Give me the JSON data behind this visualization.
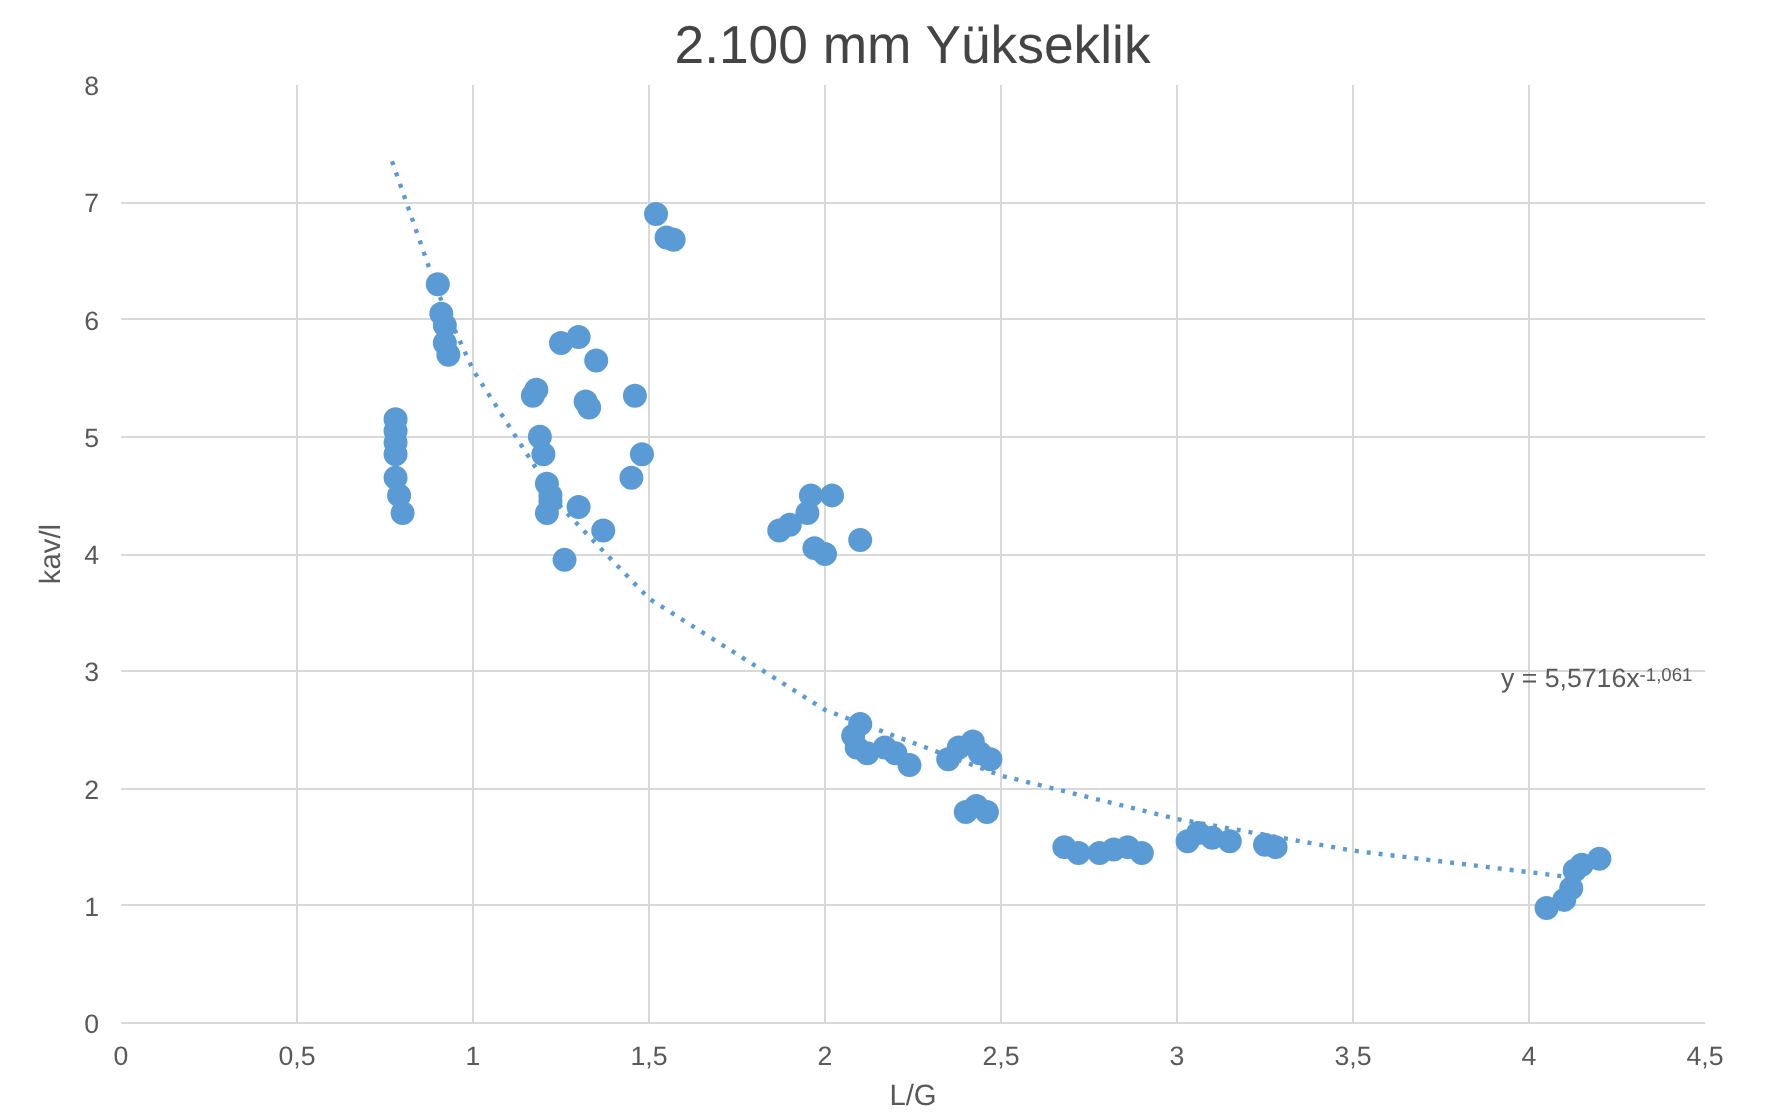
{
  "chart_data": {
    "type": "scatter",
    "title": "2.100 mm Yükseklik",
    "xlabel": "L/G",
    "ylabel": "kav/l",
    "xlim": [
      0,
      4.5
    ],
    "ylim": [
      0,
      8
    ],
    "xticks": [
      0,
      {
        "value": 0.5,
        "label": "0,5"
      },
      1,
      {
        "value": 1.5,
        "label": "1,5"
      },
      2,
      {
        "value": 2.5,
        "label": "2,5"
      },
      3,
      {
        "value": 3.5,
        "label": "3,5"
      },
      4,
      {
        "value": 4.5,
        "label": "4,5"
      }
    ],
    "yticks": [
      0,
      1,
      2,
      3,
      4,
      5,
      6,
      7,
      8
    ],
    "grid": true,
    "annotations": [
      "y = 5,5716x$^{-1,061}$"
    ],
    "series": [
      {
        "marker": "circle",
        "color": "#5b9bd5",
        "x": [
          0.78,
          0.78,
          0.78,
          0.78,
          0.78,
          0.79,
          0.8,
          0.9,
          0.91,
          0.92,
          0.92,
          0.93,
          1.17,
          1.18,
          1.19,
          1.2,
          1.21,
          1.22,
          1.21,
          1.22,
          1.25,
          1.3,
          1.35,
          1.32,
          1.33,
          1.3,
          1.37,
          1.26,
          1.45,
          1.48,
          1.46,
          1.52,
          1.55,
          1.57,
          1.87,
          1.9,
          1.95,
          1.96,
          2.02,
          1.97,
          2.0,
          2.1,
          2.08,
          2.1,
          2.09,
          2.12,
          2.17,
          2.2,
          2.24,
          2.35,
          2.38,
          2.42,
          2.44,
          2.47,
          2.4,
          2.43,
          2.46,
          2.68,
          2.72,
          2.78,
          2.82,
          2.86,
          2.9,
          3.03,
          3.06,
          3.1,
          3.15,
          3.25,
          3.28,
          4.05,
          4.1,
          4.12,
          4.13,
          4.15,
          4.2
        ],
        "values": [
          5.15,
          5.05,
          4.95,
          4.85,
          4.65,
          4.5,
          4.35,
          6.3,
          6.05,
          5.95,
          5.8,
          5.7,
          5.35,
          5.4,
          5.0,
          4.85,
          4.6,
          4.5,
          4.35,
          4.45,
          5.8,
          5.85,
          5.65,
          5.3,
          5.25,
          4.4,
          4.2,
          3.95,
          4.65,
          4.85,
          5.35,
          6.9,
          6.7,
          6.68,
          4.2,
          4.25,
          4.35,
          4.5,
          4.5,
          4.05,
          4.0,
          4.12,
          2.45,
          2.55,
          2.35,
          2.3,
          2.35,
          2.3,
          2.2,
          2.25,
          2.35,
          2.4,
          2.3,
          2.25,
          1.8,
          1.85,
          1.8,
          1.5,
          1.45,
          1.45,
          1.48,
          1.5,
          1.45,
          1.55,
          1.62,
          1.58,
          1.55,
          1.52,
          1.5,
          0.98,
          1.05,
          1.15,
          1.3,
          1.35,
          1.4
        ]
      },
      {
        "type": "line",
        "marker": "none",
        "line_style": "dotted",
        "color": "#5b9bd5",
        "x": [
          0.77,
          0.9,
          1.0,
          1.25,
          1.5,
          2.0,
          2.5,
          3.0,
          3.5,
          4.1
        ],
        "values": [
          7.35,
          6.23,
          5.57,
          4.4,
          3.62,
          2.67,
          2.11,
          1.74,
          1.47,
          1.25
        ]
      }
    ]
  }
}
